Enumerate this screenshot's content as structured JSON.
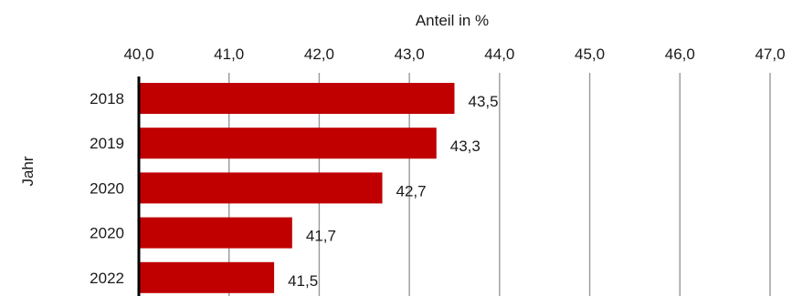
{
  "chart_data": {
    "type": "bar",
    "orientation": "horizontal",
    "categories": [
      "2018",
      "2019",
      "2020",
      "2020",
      "2022"
    ],
    "values": [
      43.5,
      43.3,
      42.7,
      41.7,
      41.5
    ],
    "data_labels": [
      "43,5",
      "43,3",
      "42,7",
      "41,7",
      "41,5"
    ],
    "xlabel": "Anteil in %",
    "ylabel": "Jahr",
    "xlim": [
      40.0,
      47.0
    ],
    "x_ticks": [
      40.0,
      41.0,
      42.0,
      43.0,
      44.0,
      45.0,
      46.0,
      47.0
    ],
    "x_tick_labels": [
      "40,0",
      "41,0",
      "42,0",
      "43,0",
      "44,0",
      "45,0",
      "46,0",
      "47,0"
    ],
    "x_axis_position": "top",
    "grid": "vertical",
    "bar_color": "#c00000",
    "grid_color": "#999999",
    "axis_color": "#000000"
  }
}
